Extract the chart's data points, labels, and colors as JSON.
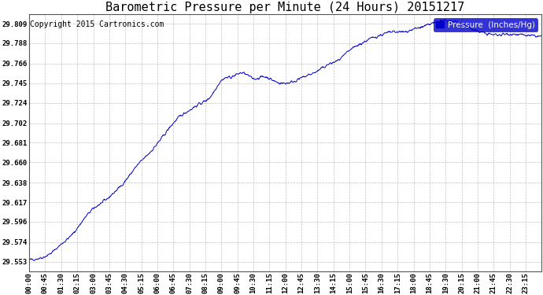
{
  "title": "Barometric Pressure per Minute (24 Hours) 20151217",
  "copyright": "Copyright 2015 Cartronics.com",
  "legend_label": "Pressure  (Inches/Hg)",
  "line_color": "#0000cc",
  "legend_bg": "#0000cc",
  "legend_text_color": "#ffffff",
  "bg_color": "#ffffff",
  "grid_color": "#b0b0b0",
  "yticks": [
    29.553,
    29.574,
    29.596,
    29.617,
    29.638,
    29.66,
    29.681,
    29.702,
    29.724,
    29.745,
    29.766,
    29.788,
    29.809
  ],
  "ylim": [
    29.543,
    29.819
  ],
  "xtick_labels": [
    "00:00",
    "00:45",
    "01:30",
    "02:15",
    "03:00",
    "03:45",
    "04:30",
    "05:15",
    "06:00",
    "06:45",
    "07:30",
    "08:15",
    "09:00",
    "09:45",
    "10:30",
    "11:15",
    "12:00",
    "12:45",
    "13:30",
    "14:15",
    "15:00",
    "15:45",
    "16:30",
    "17:15",
    "18:00",
    "18:45",
    "19:30",
    "20:15",
    "21:00",
    "21:45",
    "22:30",
    "23:15"
  ],
  "title_fontsize": 11,
  "copyright_fontsize": 7,
  "tick_fontsize": 6.5,
  "legend_fontsize": 7.5,
  "anchors_x": [
    0,
    30,
    60,
    90,
    120,
    150,
    180,
    210,
    240,
    270,
    300,
    330,
    360,
    390,
    420,
    450,
    480,
    510,
    540,
    570,
    600,
    630,
    660,
    690,
    720,
    750,
    780,
    810,
    840,
    870,
    900,
    930,
    960,
    990,
    1020,
    1050,
    1080,
    1110,
    1140,
    1170,
    1200,
    1230,
    1260,
    1290,
    1320,
    1350,
    1380,
    1410,
    1439
  ],
  "anchors_y": [
    29.555,
    29.557,
    29.562,
    29.572,
    29.582,
    29.597,
    29.61,
    29.618,
    29.628,
    29.64,
    29.655,
    29.667,
    29.68,
    29.695,
    29.708,
    29.716,
    29.723,
    29.731,
    29.748,
    29.752,
    29.756,
    29.75,
    29.752,
    29.747,
    29.745,
    29.748,
    29.753,
    29.758,
    29.765,
    29.77,
    29.78,
    29.787,
    29.793,
    29.797,
    29.8,
    29.8,
    29.803,
    29.806,
    29.81,
    29.812,
    29.811,
    29.806,
    29.801,
    29.798,
    29.797,
    29.798,
    29.797,
    29.796,
    29.795
  ]
}
